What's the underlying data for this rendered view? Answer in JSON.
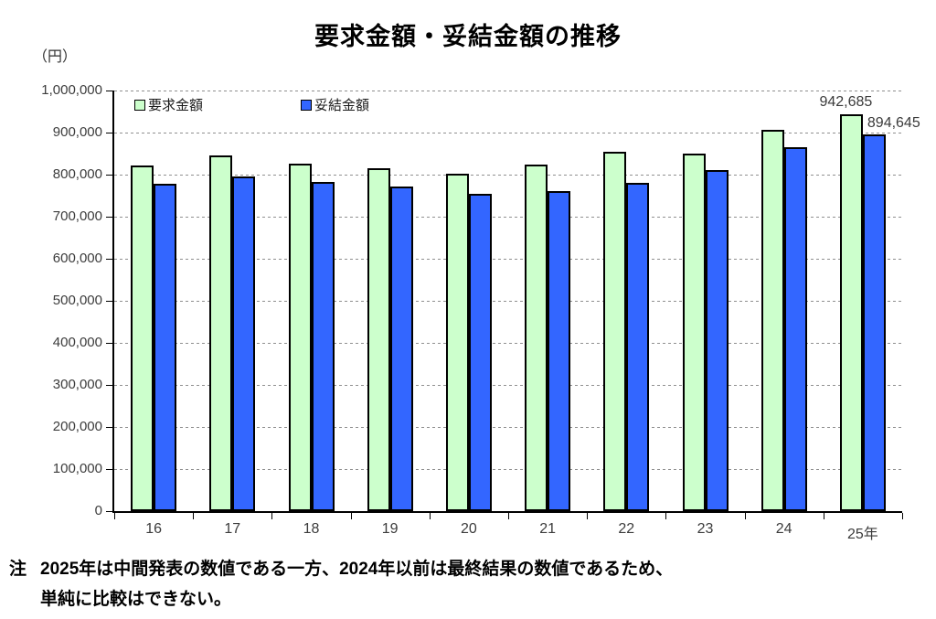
{
  "page": {
    "title": "要求金額・妥結金額の推移",
    "unit_label": "（円）",
    "note": {
      "prefix": "注",
      "line1": "2025年は中間発表の数値である一方、2024年以前は最終結果の数値であるため、",
      "line2": "単純に比較はできない。"
    }
  },
  "chart_data": {
    "type": "bar",
    "title": "要求金額・妥結金額の推移",
    "unit": "円",
    "categories": [
      "16",
      "17",
      "18",
      "19",
      "20",
      "21",
      "22",
      "23",
      "24",
      "25年"
    ],
    "series": [
      {
        "name": "要求金額",
        "color": "#ccffcc",
        "border_color": "#000000",
        "values": [
          822000,
          845000,
          827000,
          815000,
          802000,
          824000,
          854000,
          851000,
          906000,
          942685
        ]
      },
      {
        "name": "妥結金額",
        "color": "#3366ff",
        "border_color": "#000000",
        "values": [
          778000,
          795000,
          783000,
          772000,
          755000,
          760000,
          780000,
          811000,
          865000,
          894645
        ]
      }
    ],
    "ylim": [
      0,
      1000000
    ],
    "ytick_step": 100000,
    "ytick_labels": [
      "0",
      "100,000",
      "200,000",
      "300,000",
      "400,000",
      "500,000",
      "600,000",
      "700,000",
      "800,000",
      "900,000",
      "1,000,000"
    ],
    "grid": "horizontal-dashed",
    "grid_color": "#8f8f8f",
    "legend_position": "top-left-inside",
    "data_labels": [
      {
        "series_index": 0,
        "category_index": 9,
        "text": "942,685"
      },
      {
        "series_index": 1,
        "category_index": 9,
        "text": "894,645"
      }
    ]
  }
}
